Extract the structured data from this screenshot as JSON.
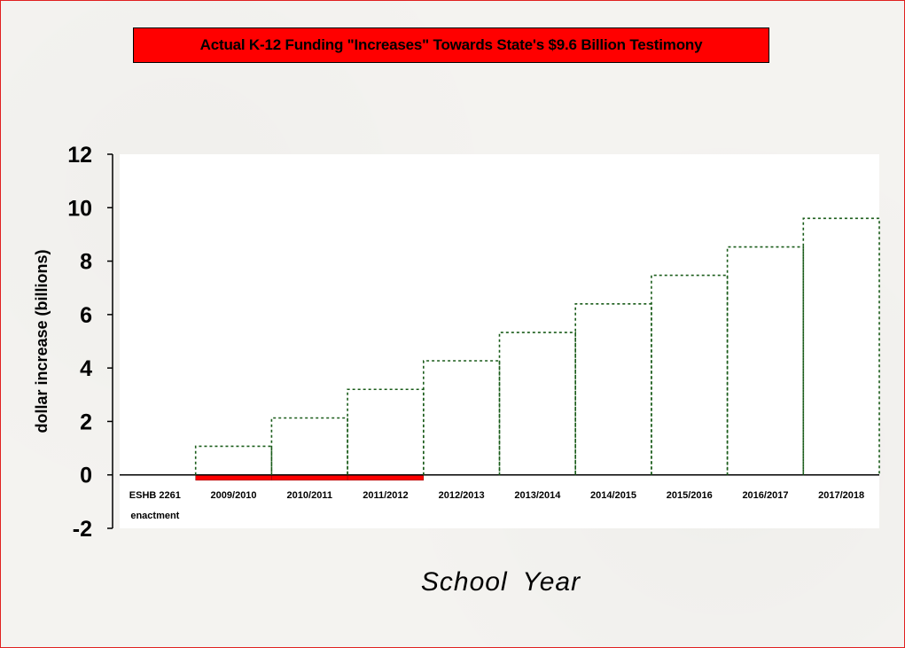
{
  "chart_data": {
    "type": "bar",
    "title": "Actual K-12 Funding \"Increases\" Towards State's $9.6 Billion Testimony",
    "xlabel": "School Year",
    "ylabel": "dollar increase (billions)",
    "ylim": [
      -2,
      12
    ],
    "yticks": [
      -2,
      0,
      2,
      4,
      6,
      8,
      10,
      12
    ],
    "categories": [
      "ESHB 2261 enactment",
      "2009/2010",
      "2010/2011",
      "2011/2012",
      "2012/2013",
      "2013/2014",
      "2014/2015",
      "2015/2016",
      "2016/2017",
      "2017/2018"
    ],
    "category_lines": [
      [
        "ESHB 2261",
        "enactment"
      ],
      [
        "2009/2010"
      ],
      [
        "2010/2011"
      ],
      [
        "2011/2012"
      ],
      [
        "2012/2013"
      ],
      [
        "2013/2014"
      ],
      [
        "2014/2015"
      ],
      [
        "2015/2016"
      ],
      [
        "2016/2017"
      ],
      [
        "2017/2018"
      ]
    ],
    "series": [
      {
        "style": "dashed-outline",
        "color": "#1a5c1a",
        "values": [
          0,
          1.07,
          2.13,
          3.2,
          4.27,
          5.33,
          6.4,
          7.47,
          8.53,
          9.6
        ]
      },
      {
        "style": "solid-fill",
        "color": "#ff0000",
        "values": [
          0,
          -0.2,
          -0.2,
          -0.2,
          0,
          0,
          0,
          0,
          0,
          0
        ]
      }
    ],
    "grid": false,
    "legend": "none"
  }
}
